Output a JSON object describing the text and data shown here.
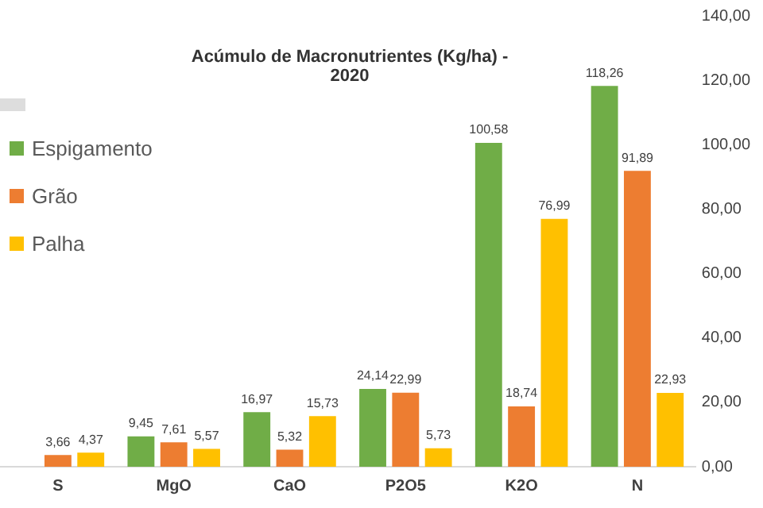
{
  "chart_data": {
    "type": "bar",
    "title": "Acúmulo de Macronutrientes (Kg/ha) - 2020",
    "categories": [
      "S",
      "MgO",
      "CaO",
      "P2O5",
      "K2O",
      "N"
    ],
    "series": [
      {
        "name": "Espigamento",
        "color": "#70ad47",
        "values": [
          null,
          9.45,
          16.97,
          24.14,
          100.58,
          118.26
        ],
        "value_labels": [
          null,
          "9,45",
          "16,97",
          "24,14",
          "100,58",
          "118,26"
        ]
      },
      {
        "name": "Grão",
        "color": "#ed7d31",
        "values": [
          3.66,
          7.61,
          5.32,
          22.99,
          18.74,
          91.89
        ],
        "value_labels": [
          "3,66",
          "7,61",
          "5,32",
          "22,99",
          "18,74",
          "91,89"
        ]
      },
      {
        "name": "Palha",
        "color": "#ffc000",
        "values": [
          4.37,
          5.57,
          15.73,
          5.73,
          76.99,
          22.93
        ],
        "value_labels": [
          "4,37",
          "5,57",
          "15,73",
          "5,73",
          "76,99",
          "22,93"
        ]
      }
    ],
    "ylim": [
      0,
      140
    ],
    "yticks": [
      {
        "value": 0,
        "label": "0,00"
      },
      {
        "value": 20,
        "label": "20,00"
      },
      {
        "value": 40,
        "label": "40,00"
      },
      {
        "value": 60,
        "label": "60,00"
      },
      {
        "value": 80,
        "label": "80,00"
      },
      {
        "value": 100,
        "label": "100,00"
      },
      {
        "value": 120,
        "label": "120,00"
      },
      {
        "value": 140,
        "label": "140,00"
      }
    ],
    "grid": false,
    "legend": "left"
  }
}
